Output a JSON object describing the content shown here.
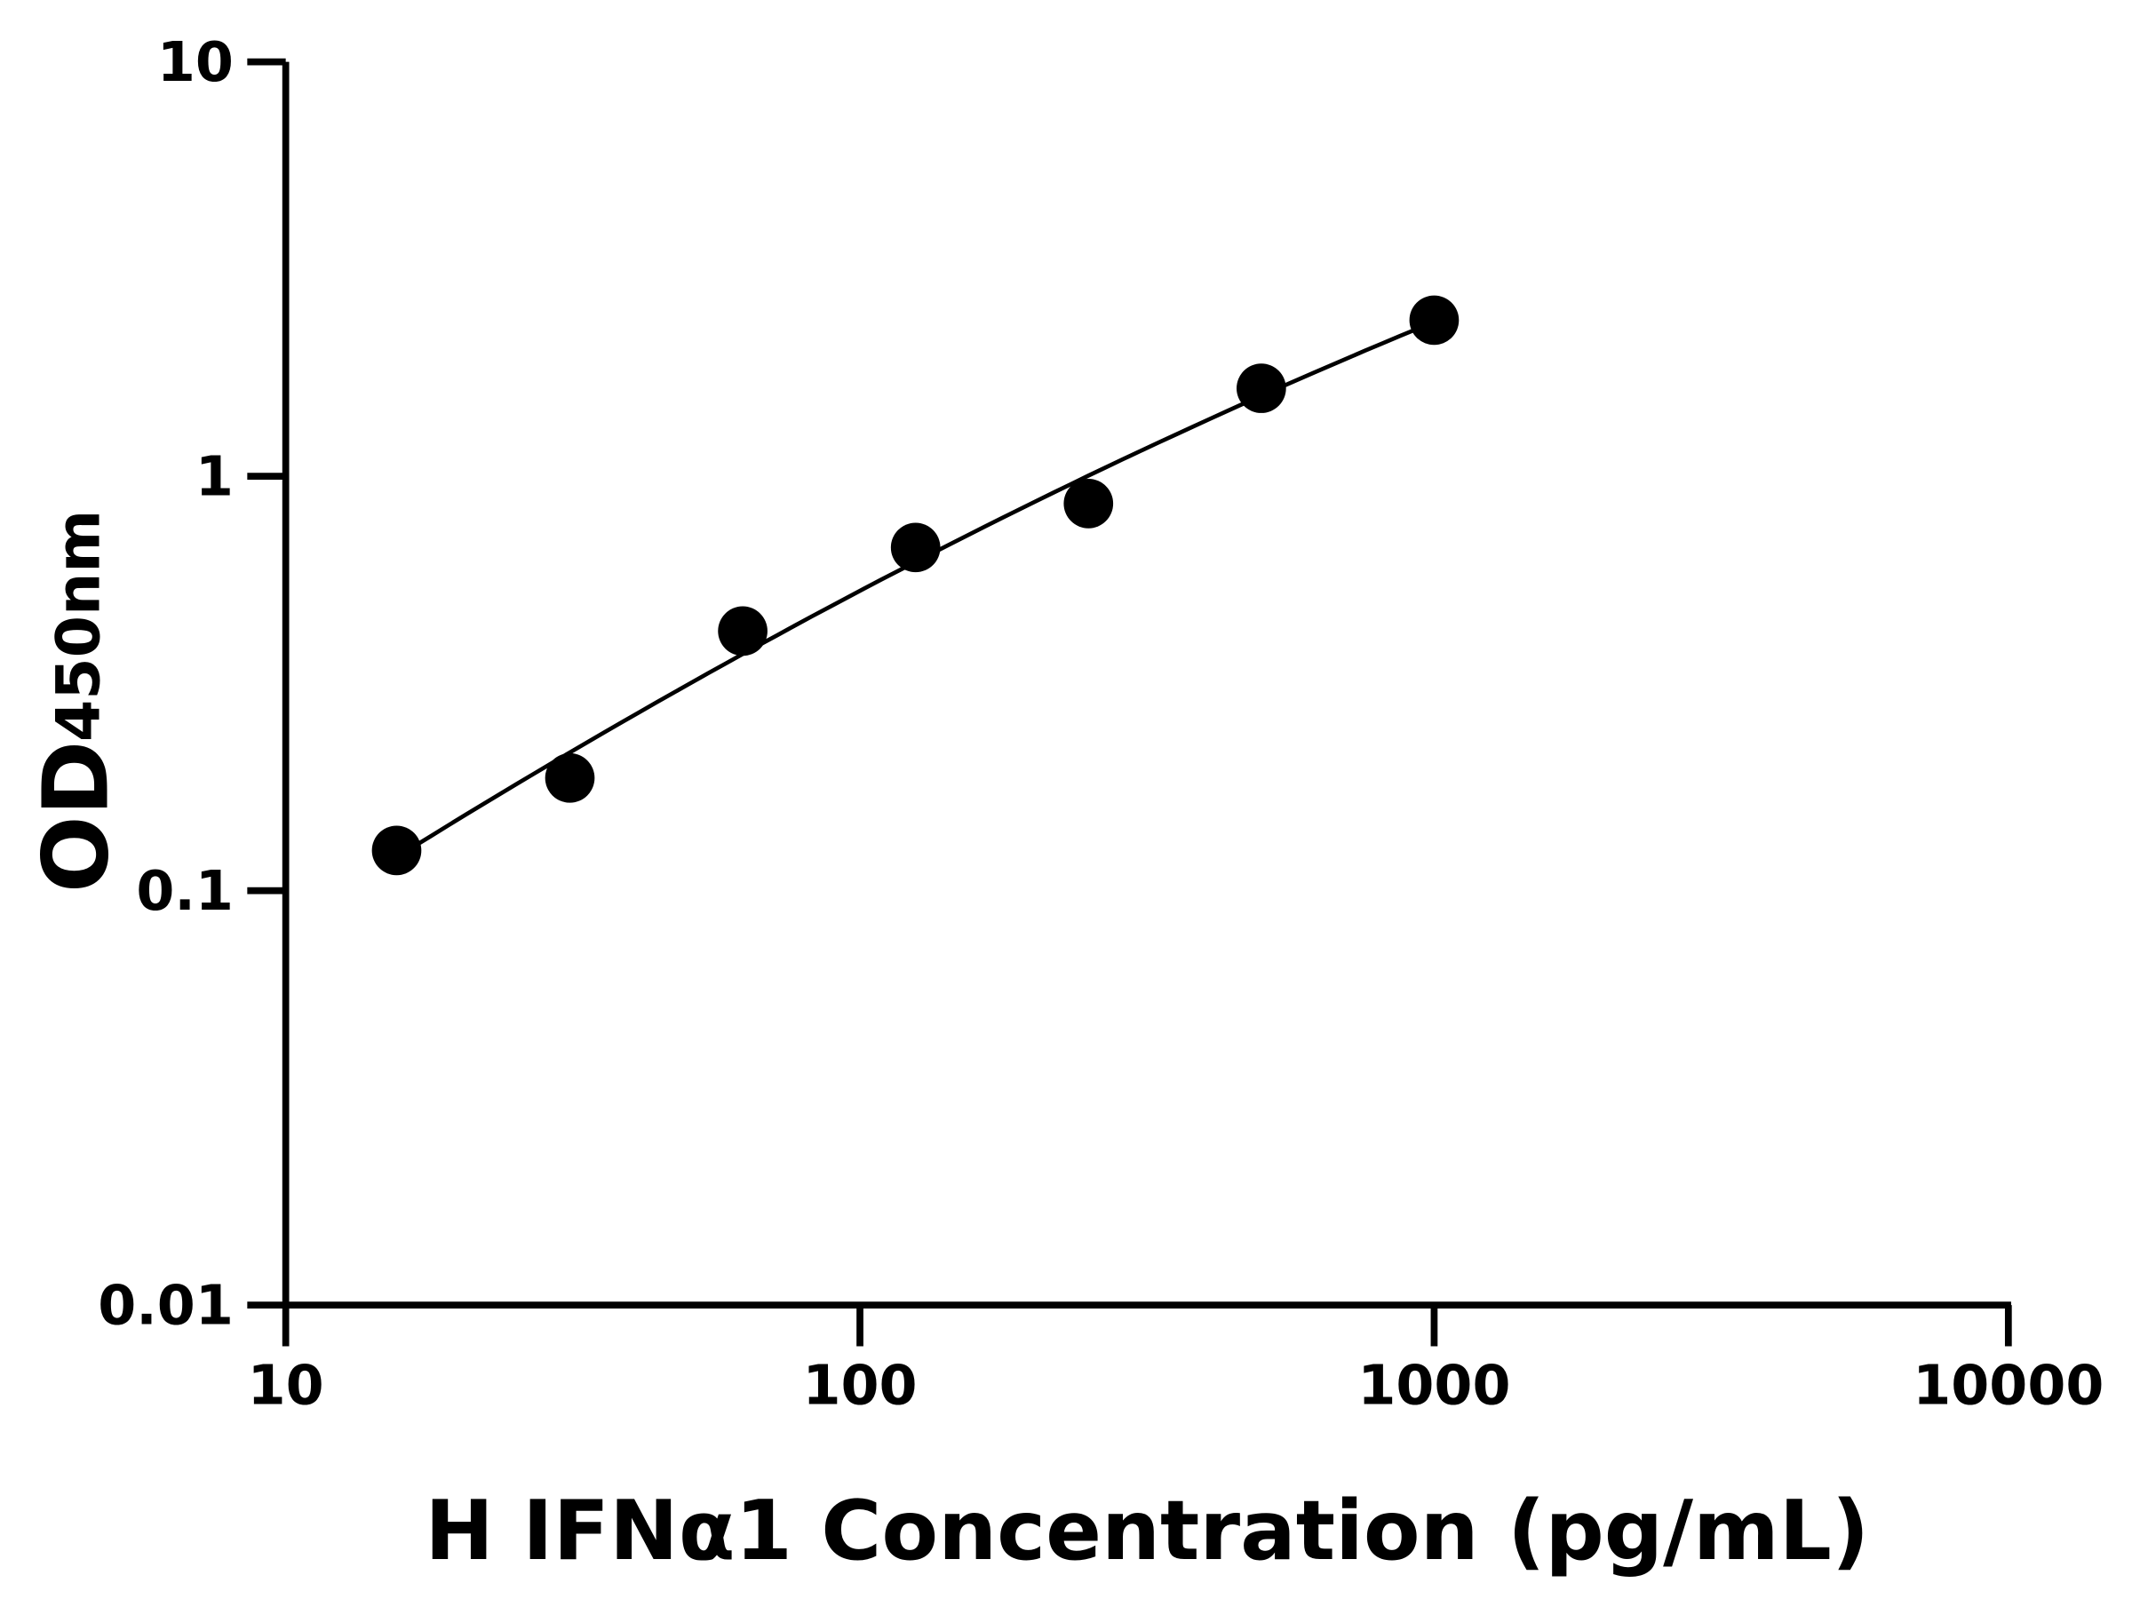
{
  "chart_data": {
    "type": "scatter",
    "title": "",
    "xlabel": "H IFNα1 Concentration (pg/mL)",
    "ylabel_main": "OD",
    "ylabel_sub": "450nm",
    "xscale": "log",
    "yscale": "log",
    "xlim": [
      10,
      10000
    ],
    "ylim": [
      0.01,
      10
    ],
    "x_ticks": [
      "10",
      "100",
      "1000",
      "10000"
    ],
    "y_ticks": [
      "0.01",
      "0.1",
      "1",
      "10"
    ],
    "grid": false,
    "series": [
      {
        "x": [
          15.6,
          31.25,
          62.5,
          125,
          250,
          500,
          1000
        ],
        "y": [
          0.125,
          0.187,
          0.423,
          0.673,
          0.859,
          1.63,
          2.38
        ],
        "marker": "circle",
        "fit_line": true
      }
    ],
    "colors": {
      "marks": "#000000"
    }
  }
}
